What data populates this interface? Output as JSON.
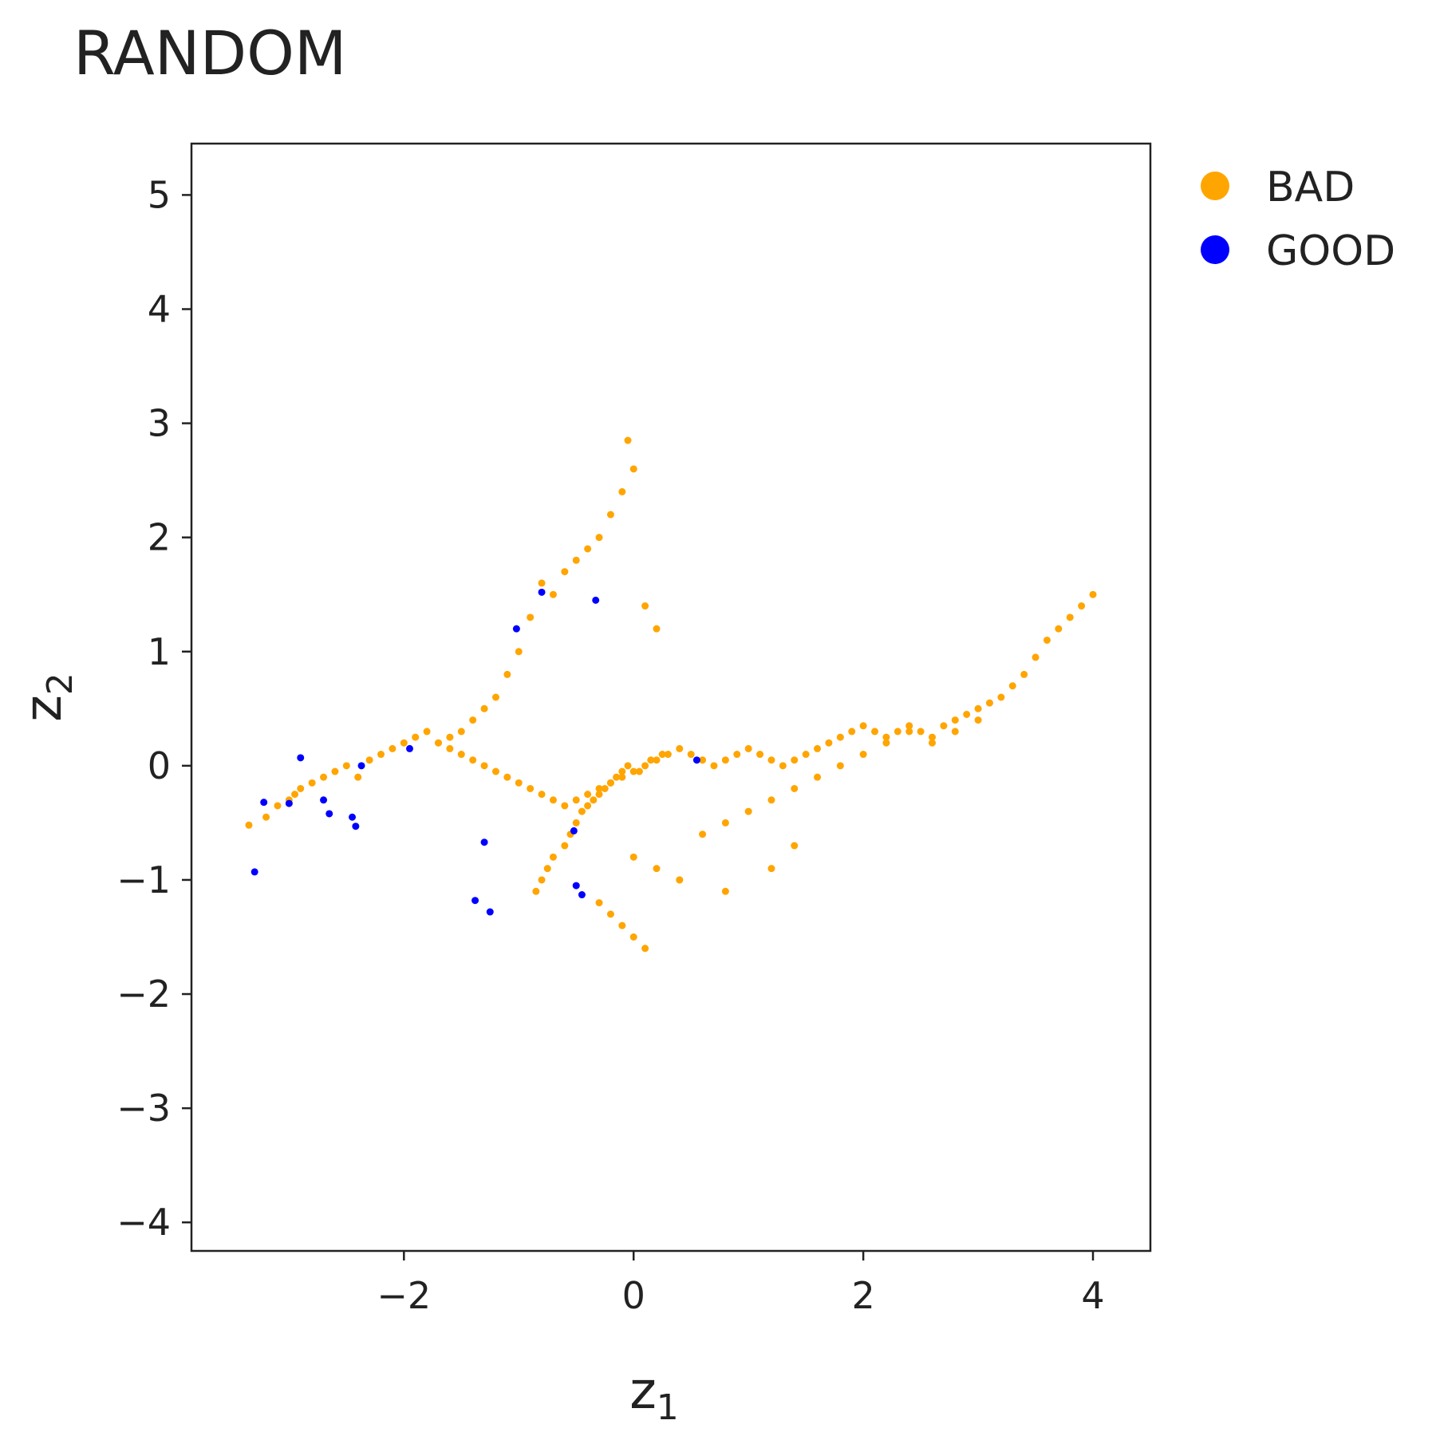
{
  "colors": {
    "BAD": "#FFA500",
    "GOOD": "#0000FF"
  },
  "chart_data": {
    "type": "scatter",
    "title": "RANDOM",
    "xlabel": "z",
    "xlabel_sub": "1",
    "ylabel": "z",
    "ylabel_sub": "2",
    "xlim": [
      -3.85,
      4.5
    ],
    "ylim": [
      -4.25,
      5.45
    ],
    "xticks": [
      -2,
      0,
      2,
      4
    ],
    "yticks": [
      -4,
      -3,
      -2,
      -1,
      0,
      1,
      2,
      3,
      4,
      5
    ],
    "xtick_labels": [
      "−2",
      "0",
      "2",
      "4"
    ],
    "ytick_labels": [
      "−4",
      "−3",
      "−2",
      "−1",
      "0",
      "1",
      "2",
      "3",
      "4",
      "5"
    ],
    "grid": false,
    "legend_position": "top-right outside",
    "series": [
      {
        "name": "BAD",
        "x": [
          -3.35,
          -3.2,
          -3.1,
          -3.0,
          -2.95,
          -2.9,
          -2.8,
          -2.7,
          -2.6,
          -2.5,
          -2.4,
          -2.3,
          -2.2,
          -2.1,
          -2.0,
          -1.9,
          -1.8,
          -1.7,
          -1.6,
          -1.5,
          -1.4,
          -1.3,
          -1.2,
          -1.1,
          -1.0,
          -0.9,
          -0.8,
          -0.7,
          -0.6,
          -0.5,
          -0.4,
          -0.3,
          -0.2,
          -0.1,
          0.0,
          0.1,
          0.2,
          0.3,
          0.4,
          0.5,
          0.6,
          0.7,
          0.8,
          0.9,
          1.0,
          1.1,
          1.2,
          1.3,
          1.4,
          1.5,
          1.6,
          1.7,
          1.8,
          1.9,
          2.0,
          2.1,
          2.2,
          2.3,
          2.4,
          2.5,
          2.6,
          2.7,
          2.8,
          2.9,
          3.0,
          3.1,
          3.2,
          3.3,
          3.4,
          3.5,
          3.6,
          3.7,
          3.8,
          3.9,
          4.0,
          -0.55,
          -0.6,
          -0.7,
          -0.75,
          -0.8,
          -0.85,
          -0.5,
          -0.45,
          -0.4,
          -0.35,
          -0.3,
          -0.25,
          -0.2,
          -0.15,
          -0.1,
          -0.05,
          0.05,
          0.15,
          0.25,
          -0.6,
          -0.5,
          -0.4,
          -0.3,
          -0.2,
          -0.1,
          0.0,
          0.1,
          0.2,
          -0.7,
          -0.8,
          -0.9,
          -1.0,
          -1.1,
          -1.2,
          -1.3,
          -1.4,
          -1.5,
          -1.6,
          -1.7,
          0.0,
          0.2,
          0.4,
          0.6,
          0.8,
          1.0,
          1.2,
          1.4,
          1.6,
          1.8,
          2.0,
          2.2,
          2.4,
          2.6,
          2.8,
          3.0,
          -0.3,
          -0.2,
          -0.1,
          0.0,
          0.1,
          0.4,
          0.8,
          1.2,
          1.4,
          -0.05
        ],
        "y": [
          -0.52,
          -0.45,
          -0.35,
          -0.3,
          -0.25,
          -0.2,
          -0.15,
          -0.1,
          -0.05,
          0.0,
          -0.1,
          0.05,
          0.1,
          0.15,
          0.2,
          0.25,
          0.3,
          0.2,
          0.15,
          0.1,
          0.05,
          0.0,
          -0.05,
          -0.1,
          -0.15,
          -0.2,
          -0.25,
          -0.3,
          -0.35,
          -0.3,
          -0.25,
          -0.2,
          -0.15,
          -0.1,
          -0.05,
          0.0,
          0.05,
          0.1,
          0.15,
          0.1,
          0.05,
          0.0,
          0.05,
          0.1,
          0.15,
          0.1,
          0.05,
          0.0,
          0.05,
          0.1,
          0.15,
          0.2,
          0.25,
          0.3,
          0.35,
          0.3,
          0.25,
          0.3,
          0.35,
          0.3,
          0.25,
          0.35,
          0.4,
          0.45,
          0.5,
          0.55,
          0.6,
          0.7,
          0.8,
          0.95,
          1.1,
          1.2,
          1.3,
          1.4,
          1.5,
          -0.6,
          -0.7,
          -0.8,
          -0.9,
          -1.0,
          -1.1,
          -0.5,
          -0.4,
          -0.35,
          -0.3,
          -0.25,
          -0.2,
          -0.15,
          -0.1,
          -0.05,
          0.0,
          -0.05,
          0.05,
          0.1,
          1.7,
          1.8,
          1.9,
          2.0,
          2.2,
          2.4,
          2.6,
          1.4,
          1.2,
          1.5,
          1.6,
          1.3,
          1.0,
          0.8,
          0.6,
          0.5,
          0.4,
          0.3,
          0.25,
          0.2,
          -0.8,
          -0.9,
          -1.0,
          -0.6,
          -0.5,
          -0.4,
          -0.3,
          -0.2,
          -0.1,
          0.0,
          0.1,
          0.2,
          0.3,
          0.2,
          0.3,
          0.4,
          -1.2,
          -1.3,
          -1.4,
          -1.5,
          -1.6,
          -1.0,
          -1.1,
          -0.9,
          -0.7,
          2.85
        ]
      },
      {
        "name": "GOOD",
        "x": [
          -3.3,
          -3.22,
          -3.0,
          -2.9,
          -2.7,
          -2.65,
          -2.45,
          -2.42,
          -2.37,
          -1.95,
          -1.3,
          -1.38,
          -1.25,
          -1.02,
          -0.8,
          -0.52,
          -0.5,
          -0.45,
          -0.33,
          0.55
        ],
        "y": [
          -0.93,
          -0.32,
          -0.33,
          0.07,
          -0.3,
          -0.42,
          -0.45,
          -0.53,
          0.0,
          0.15,
          -0.67,
          -1.18,
          -1.28,
          1.2,
          1.52,
          -0.57,
          -1.05,
          -1.13,
          1.45,
          0.05
        ]
      }
    ]
  }
}
